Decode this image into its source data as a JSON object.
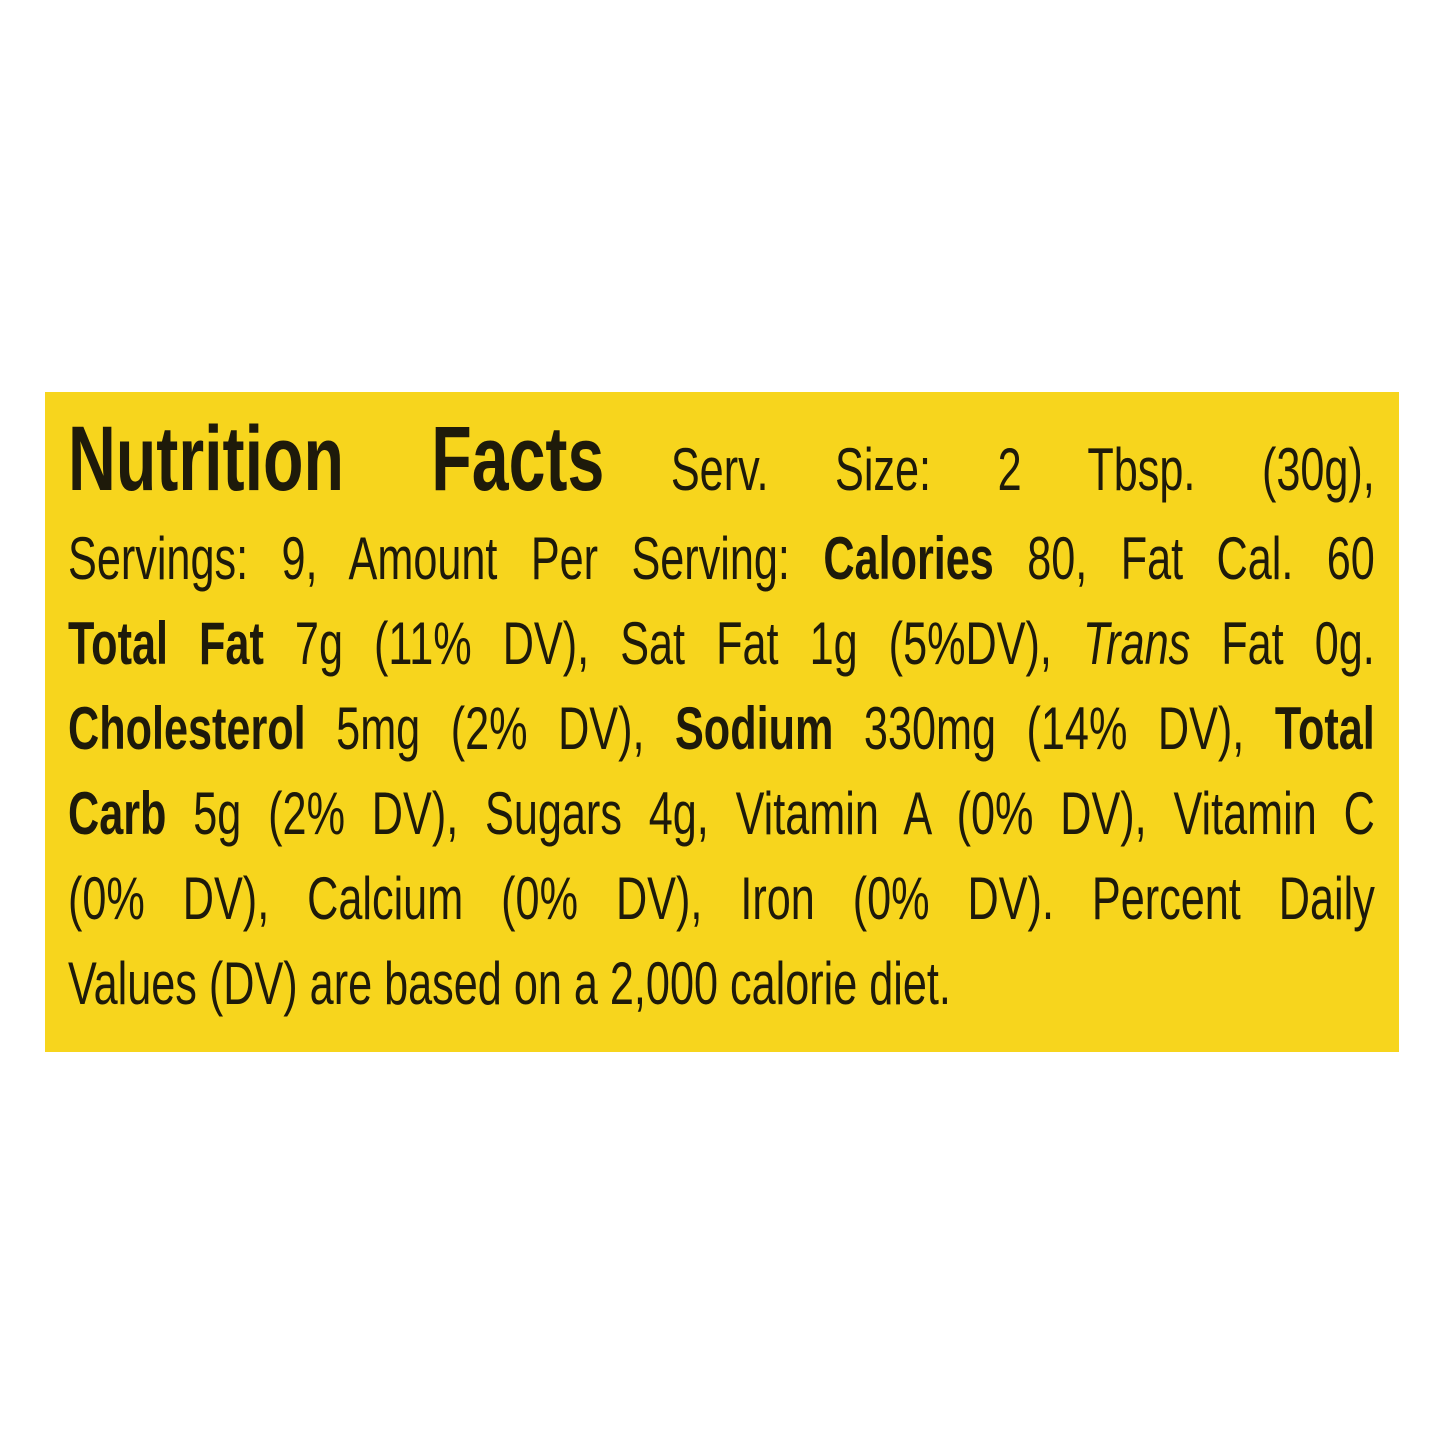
{
  "colors": {
    "label_background": "#f7d51d",
    "text": "#1e1a0a"
  },
  "title": "Nutrition Facts",
  "serving_size": "Serv. Size: 2 Tbsp. (30g),",
  "line2": {
    "servings": "Servings: 9, Amount Per Serving:",
    "calories_label": "Calories",
    "calories_value": "80, Fat Cal. 60"
  },
  "line3": {
    "total_fat_label": "Total Fat",
    "total_fat_value": "7g (11% DV), Sat Fat 1g (5%DV),",
    "trans_label": "Trans",
    "trans_value": "Fat 0g."
  },
  "line4": {
    "cholesterol_label": "Cholesterol",
    "cholesterol_value": "5mg (2% DV),",
    "sodium_label": "Sodium",
    "sodium_value": "330mg (14% DV),",
    "total_label": "Total"
  },
  "line5": {
    "carb_label": "Carb",
    "carb_value": "5g (2% DV), Sugars 4g, Vitamin A (0% DV), Vitamin C"
  },
  "line6": "(0% DV), Calcium (0% DV), Iron (0% DV).  Percent Daily",
  "line7": "Values (DV) are based on a 2,000 calorie diet."
}
